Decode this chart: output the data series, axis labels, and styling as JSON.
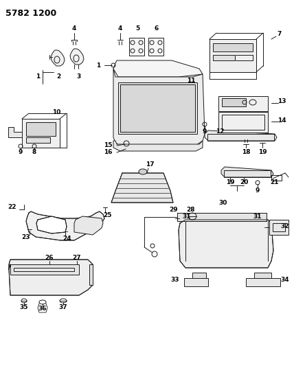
{
  "title": "5782 1200",
  "bg_color": "#ffffff",
  "line_color": "#1a1a1a",
  "title_fontsize": 9,
  "label_fontsize": 6.5,
  "fig_width": 4.28,
  "fig_height": 5.33,
  "dpi": 100
}
